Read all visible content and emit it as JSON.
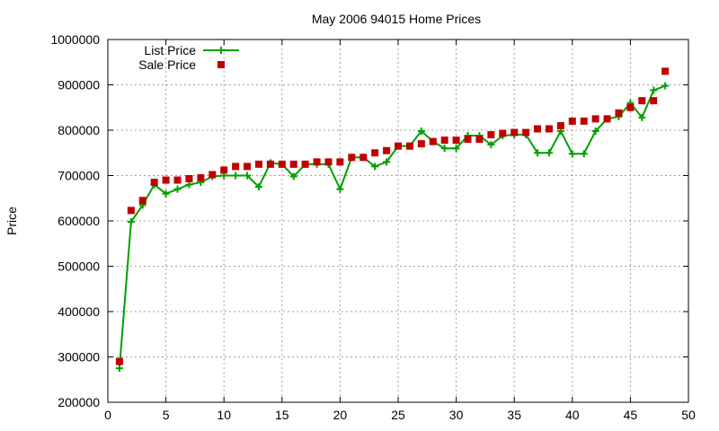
{
  "chart_data": {
    "type": "line",
    "title": "May 2006 94015 Home Prices",
    "xlabel": "",
    "ylabel": "Price",
    "xlim": [
      0,
      50
    ],
    "ylim": [
      200000,
      1000000
    ],
    "x_ticks": [
      0,
      5,
      10,
      15,
      20,
      25,
      30,
      35,
      40,
      45,
      50
    ],
    "y_ticks": [
      200000,
      300000,
      400000,
      500000,
      600000,
      700000,
      800000,
      900000,
      1000000
    ],
    "x_tick_labels": [
      "0",
      "5",
      "10",
      "15",
      "20",
      "25",
      "30",
      "35",
      "40",
      "45",
      "50"
    ],
    "y_tick_labels": [
      "200000",
      "300000",
      "400000",
      "500000",
      "600000",
      "700000",
      "800000",
      "900000",
      "1000000"
    ],
    "grid": true,
    "legend_position": "top-left",
    "x": [
      1,
      2,
      3,
      4,
      5,
      6,
      7,
      8,
      9,
      10,
      11,
      12,
      13,
      14,
      15,
      16,
      17,
      18,
      19,
      20,
      21,
      22,
      23,
      24,
      25,
      26,
      27,
      28,
      29,
      30,
      31,
      32,
      33,
      34,
      35,
      36,
      37,
      38,
      39,
      40,
      41,
      42,
      43,
      44,
      45,
      46,
      47,
      48
    ],
    "series": [
      {
        "name": "List Price",
        "style": "linespoints",
        "marker": "plus",
        "color": "#00a000",
        "values": [
          275000,
          598000,
          635000,
          680000,
          660000,
          670000,
          680000,
          685000,
          698000,
          700000,
          700000,
          700000,
          675000,
          728000,
          725000,
          698000,
          725000,
          725000,
          725000,
          670000,
          740000,
          740000,
          720000,
          730000,
          765000,
          765000,
          798000,
          775000,
          760000,
          760000,
          788000,
          788000,
          768000,
          788000,
          790000,
          790000,
          750000,
          750000,
          798000,
          748000,
          748000,
          798000,
          825000,
          830000,
          860000,
          828000,
          888000,
          898000
        ]
      },
      {
        "name": "Sale Price",
        "style": "points",
        "marker": "square",
        "color": "#c00000",
        "values": [
          290000,
          623000,
          645000,
          685000,
          690000,
          690000,
          693000,
          695000,
          702000,
          712000,
          720000,
          720000,
          725000,
          725000,
          725000,
          725000,
          725000,
          730000,
          730000,
          730000,
          740000,
          740000,
          750000,
          755000,
          765000,
          765000,
          770000,
          775000,
          778000,
          778000,
          780000,
          780000,
          790000,
          793000,
          795000,
          795000,
          803000,
          803000,
          810000,
          820000,
          820000,
          825000,
          825000,
          838000,
          850000,
          865000,
          865000,
          930000
        ]
      }
    ]
  }
}
